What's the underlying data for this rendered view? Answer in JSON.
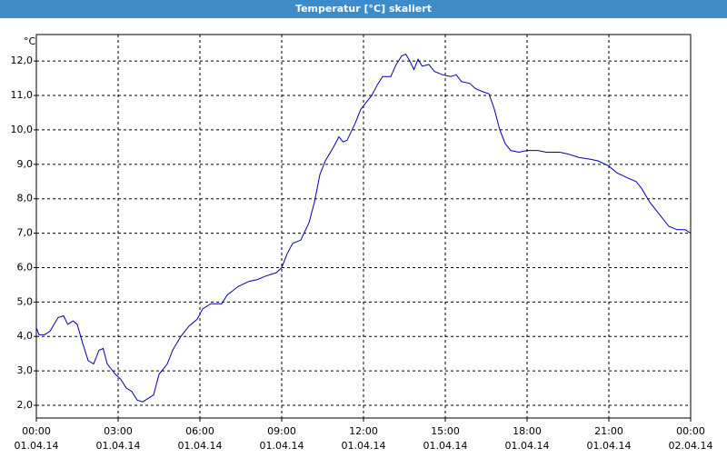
{
  "chart_data": {
    "type": "line",
    "title": "Temperatur [°C] skaliert",
    "y_label": "°C",
    "x": [
      0,
      0.1,
      0.3,
      0.5,
      0.8,
      1.0,
      1.15,
      1.35,
      1.5,
      1.7,
      1.9,
      2.1,
      2.3,
      2.45,
      2.6,
      2.9,
      3.1,
      3.3,
      3.5,
      3.7,
      3.9,
      4.1,
      4.3,
      4.5,
      4.8,
      5.0,
      5.3,
      5.6,
      5.9,
      6.1,
      6.4,
      6.8,
      7.0,
      7.4,
      7.8,
      8.1,
      8.4,
      8.8,
      9.0,
      9.2,
      9.4,
      9.7,
      10.0,
      10.2,
      10.4,
      10.6,
      10.9,
      11.1,
      11.25,
      11.4,
      11.7,
      11.9,
      12.1,
      12.3,
      12.5,
      12.7,
      13.0,
      13.2,
      13.4,
      13.55,
      13.7,
      13.85,
      14.0,
      14.15,
      14.4,
      14.6,
      14.9,
      15.2,
      15.4,
      15.6,
      15.9,
      16.1,
      16.4,
      16.6,
      16.8,
      17.0,
      17.2,
      17.4,
      17.7,
      18.0,
      18.4,
      18.7,
      19.2,
      19.5,
      19.9,
      20.3,
      20.6,
      21.0,
      21.3,
      21.7,
      22.0,
      22.2,
      22.5,
      22.9,
      23.2,
      23.5,
      23.8,
      24.0
    ],
    "series": [
      {
        "name": "Temperatur",
        "color": "#0000a8",
        "values": [
          4.25,
          4.05,
          4.05,
          4.15,
          4.55,
          4.6,
          4.35,
          4.45,
          4.35,
          3.8,
          3.3,
          3.2,
          3.6,
          3.65,
          3.2,
          2.9,
          2.75,
          2.5,
          2.4,
          2.15,
          2.1,
          2.2,
          2.3,
          2.9,
          3.2,
          3.6,
          4.0,
          4.3,
          4.5,
          4.8,
          4.95,
          4.95,
          5.2,
          5.45,
          5.6,
          5.65,
          5.75,
          5.85,
          6.0,
          6.4,
          6.7,
          6.8,
          7.3,
          7.9,
          8.7,
          9.1,
          9.5,
          9.8,
          9.65,
          9.7,
          10.2,
          10.6,
          10.8,
          11.0,
          11.3,
          11.55,
          11.55,
          11.9,
          12.15,
          12.2,
          12.0,
          11.75,
          12.05,
          11.85,
          11.9,
          11.7,
          11.6,
          11.55,
          11.6,
          11.4,
          11.35,
          11.2,
          11.1,
          11.05,
          10.6,
          10.0,
          9.6,
          9.4,
          9.35,
          9.4,
          9.4,
          9.35,
          9.35,
          9.3,
          9.2,
          9.15,
          9.1,
          8.95,
          8.75,
          8.6,
          8.5,
          8.3,
          7.9,
          7.5,
          7.2,
          7.1,
          7.1,
          7.0
        ]
      }
    ],
    "xlim": [
      0,
      24
    ],
    "ylim": [
      1.63,
      12.77
    ],
    "xticks": [
      {
        "value": 0,
        "label": "00:00"
      },
      {
        "value": 3,
        "label": "03:00"
      },
      {
        "value": 6,
        "label": "06:00"
      },
      {
        "value": 9,
        "label": "09:00"
      },
      {
        "value": 12,
        "label": "12:00"
      },
      {
        "value": 15,
        "label": "15:00"
      },
      {
        "value": 18,
        "label": "18:00"
      },
      {
        "value": 21,
        "label": "21:00"
      },
      {
        "value": 24,
        "label": "00:00"
      }
    ],
    "xtick_dates": [
      "01.04.14",
      "01.04.14",
      "01.04.14",
      "01.04.14",
      "01.04.14",
      "01.04.14",
      "01.04.14",
      "01.04.14",
      "02.04.14"
    ],
    "yticks": [
      {
        "value": 2,
        "label": "2,0"
      },
      {
        "value": 3,
        "label": "3,0"
      },
      {
        "value": 4,
        "label": "4,0"
      },
      {
        "value": 5,
        "label": "5,0"
      },
      {
        "value": 6,
        "label": "6,0"
      },
      {
        "value": 7,
        "label": "7,0"
      },
      {
        "value": 8,
        "label": "8,0"
      },
      {
        "value": 9,
        "label": "9,0"
      },
      {
        "value": 10,
        "label": "10,0"
      },
      {
        "value": 11,
        "label": "11,0"
      },
      {
        "value": 12,
        "label": "12,0"
      }
    ],
    "grid": true
  }
}
